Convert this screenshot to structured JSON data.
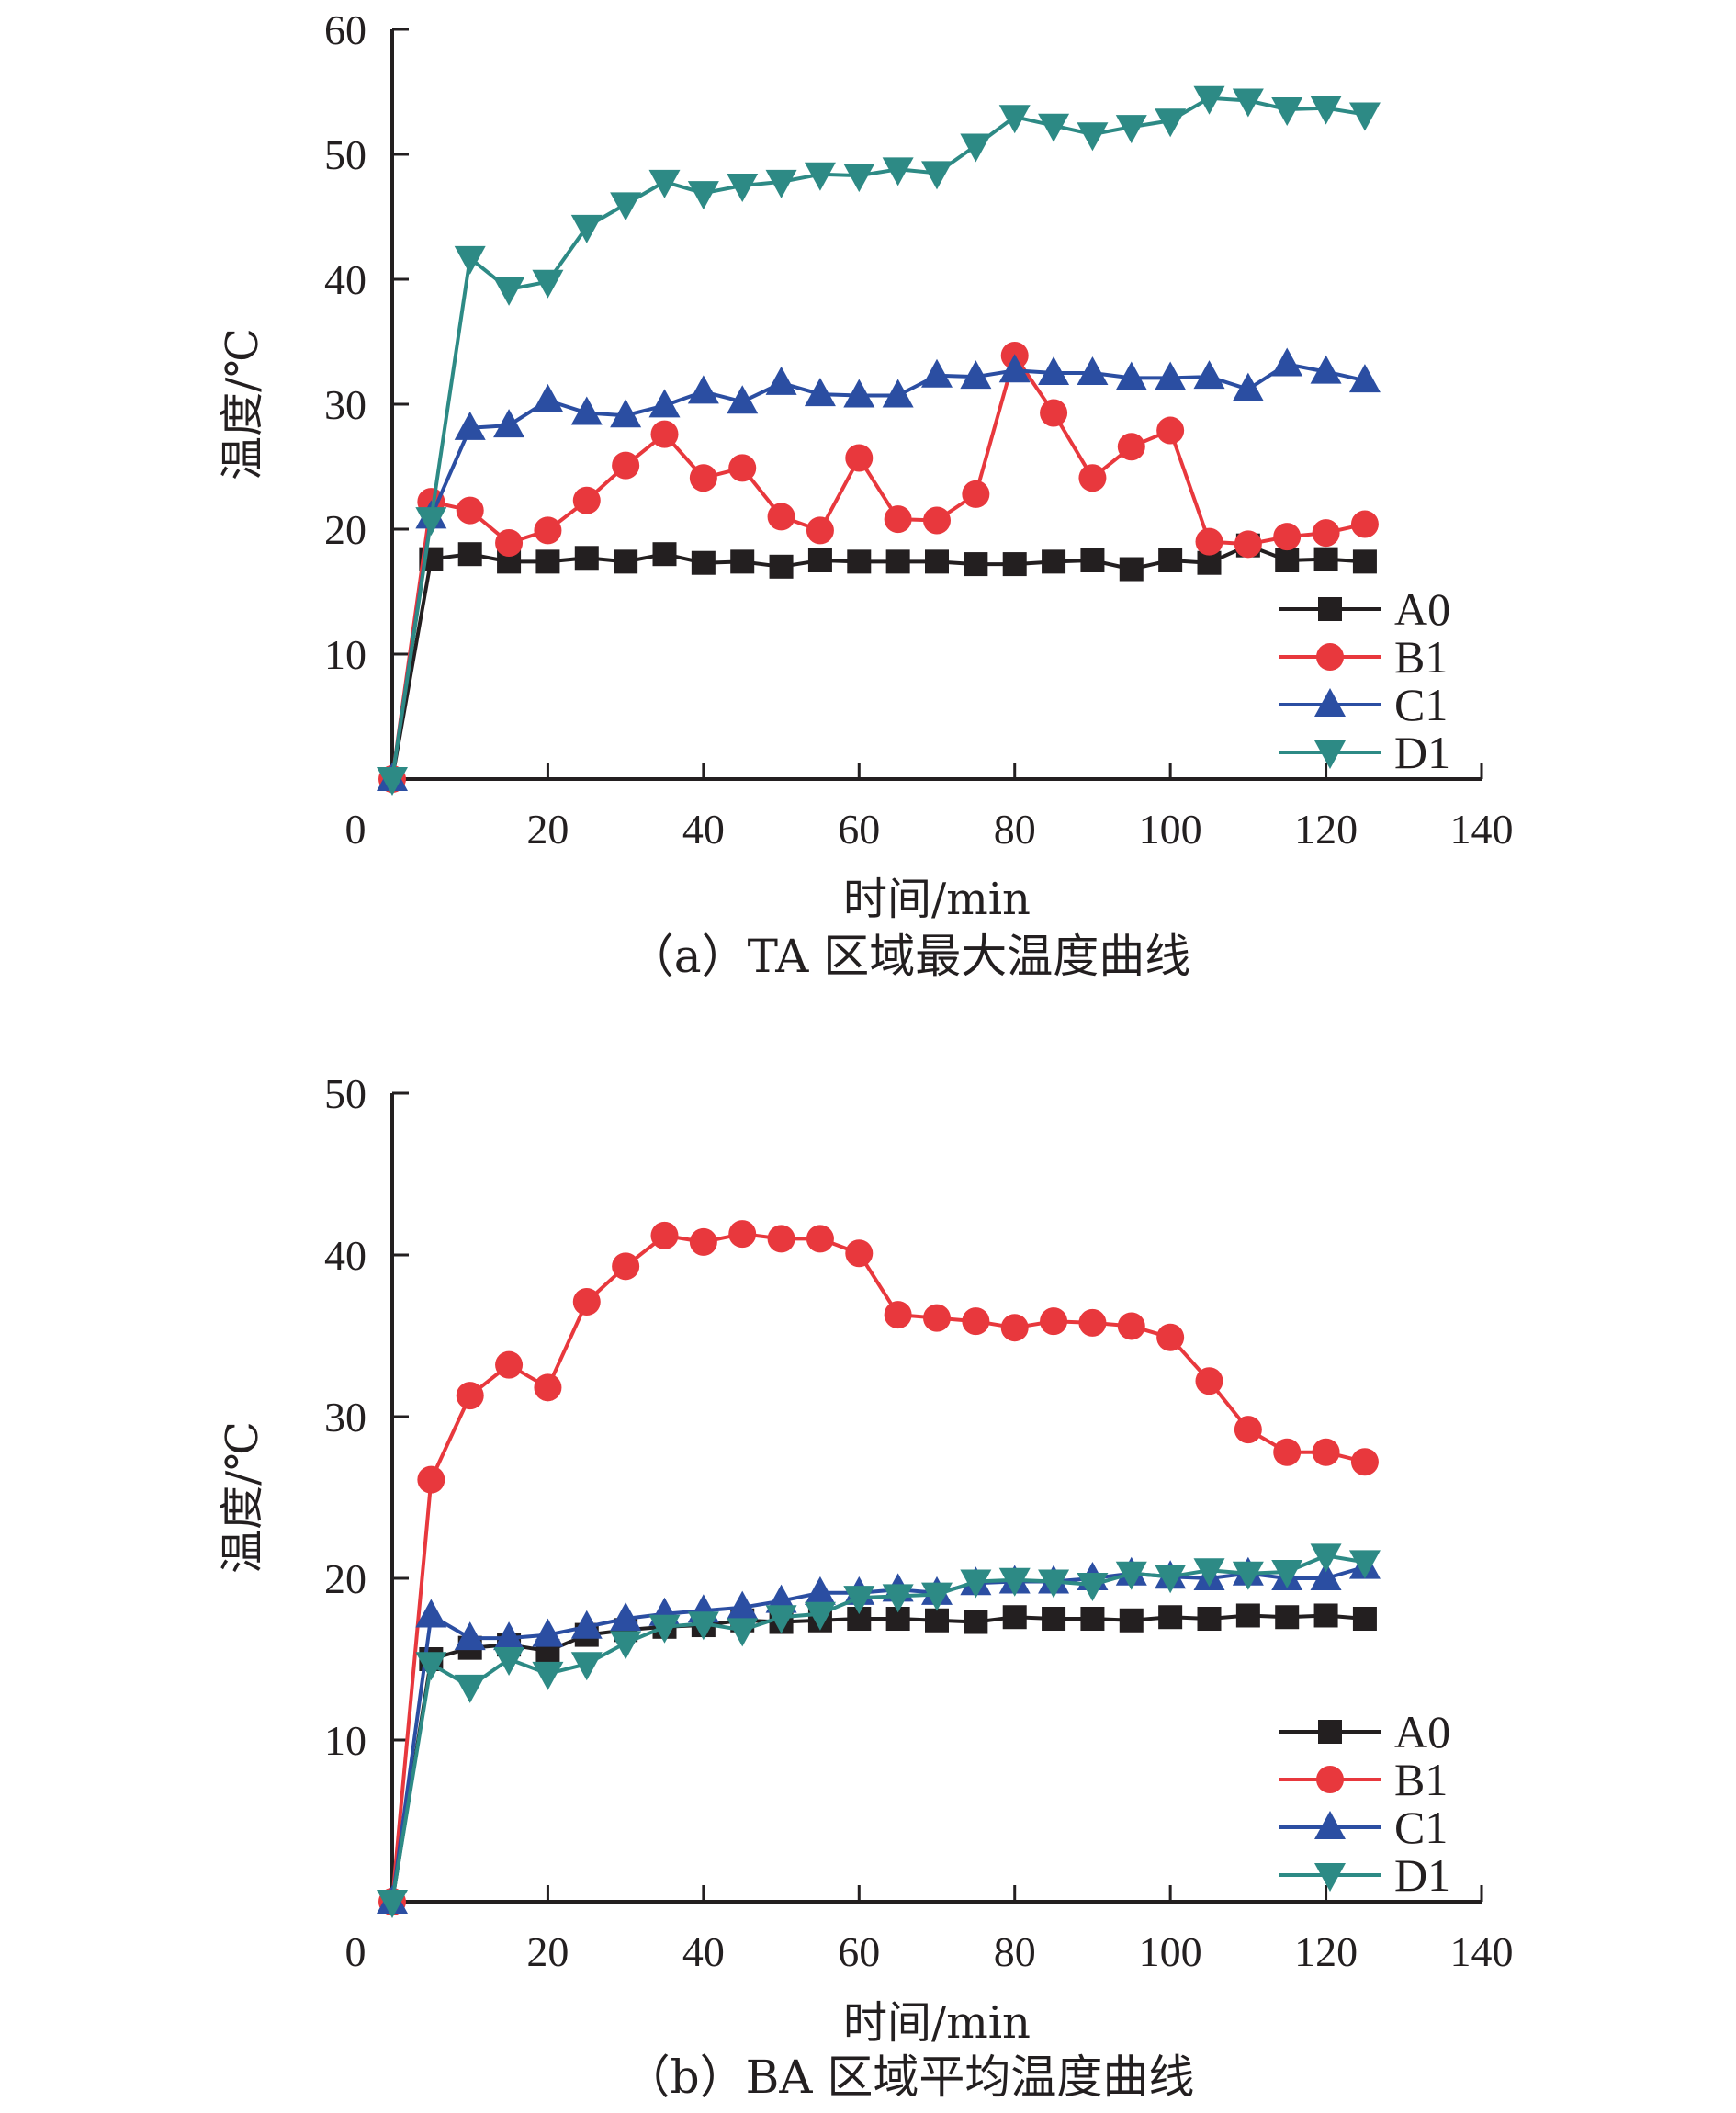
{
  "chart_data": [
    {
      "type": "line",
      "caption": "（a）TA 区域最大温度曲线",
      "xlabel": "时间/min",
      "ylabel": "温度/℃",
      "xlim": [
        0,
        140
      ],
      "ylim": [
        0,
        60
      ],
      "xticks": [
        0,
        20,
        40,
        60,
        80,
        100,
        120,
        140
      ],
      "yticks": [
        10,
        20,
        30,
        40,
        50,
        60
      ],
      "legend_position": "lower-right",
      "x": [
        5,
        10,
        15,
        20,
        25,
        30,
        35,
        40,
        45,
        50,
        55,
        60,
        65,
        70,
        75,
        80,
        85,
        90,
        95,
        100,
        105,
        110,
        115,
        120,
        125
      ],
      "x_start": 0,
      "series": [
        {
          "name": "A0",
          "color": "#231f20",
          "marker": "square",
          "start": 0,
          "values": [
            17.6,
            18.0,
            17.4,
            17.4,
            17.7,
            17.4,
            18.0,
            17.3,
            17.4,
            17.0,
            17.5,
            17.4,
            17.4,
            17.4,
            17.2,
            17.2,
            17.4,
            17.5,
            16.8,
            17.5,
            17.3,
            18.7,
            17.5,
            17.6,
            17.4
          ]
        },
        {
          "name": "B1",
          "color": "#e8383d",
          "marker": "circle",
          "start": 0,
          "values": [
            22.2,
            21.5,
            18.9,
            19.9,
            22.3,
            25.1,
            27.6,
            24.1,
            24.9,
            21.0,
            19.9,
            25.7,
            20.8,
            20.7,
            22.8,
            33.9,
            29.3,
            24.1,
            26.6,
            27.9,
            19.0,
            18.8,
            19.4,
            19.7,
            20.4
          ]
        },
        {
          "name": "C1",
          "color": "#2b4ea2",
          "marker": "triangle-up",
          "start": 0,
          "values": [
            21.0,
            28.1,
            28.3,
            30.3,
            29.3,
            29.1,
            29.9,
            31.0,
            30.2,
            31.7,
            30.8,
            30.7,
            30.7,
            32.3,
            32.2,
            32.7,
            32.5,
            32.5,
            32.1,
            32.1,
            32.2,
            31.2,
            33.2,
            32.6,
            31.9
          ]
        },
        {
          "name": "D1",
          "color": "#2d8a85",
          "marker": "triangle-down",
          "start": 0,
          "values": [
            20.8,
            41.7,
            39.2,
            39.8,
            44.2,
            46.0,
            47.8,
            46.9,
            47.5,
            47.8,
            48.4,
            48.3,
            48.8,
            48.5,
            50.7,
            53.0,
            52.3,
            51.6,
            52.2,
            52.7,
            54.5,
            54.3,
            53.6,
            53.7,
            53.2
          ]
        }
      ]
    },
    {
      "type": "line",
      "caption": "（b）BA 区域平均温度曲线",
      "xlabel": "时间/min",
      "ylabel": "温度/℃",
      "xlim": [
        0,
        140
      ],
      "ylim": [
        0,
        50
      ],
      "xticks": [
        0,
        20,
        40,
        60,
        80,
        100,
        120,
        140
      ],
      "yticks": [
        10,
        20,
        30,
        40,
        50
      ],
      "legend_position": "lower-right",
      "x": [
        5,
        10,
        15,
        20,
        25,
        30,
        35,
        40,
        45,
        50,
        55,
        60,
        65,
        70,
        75,
        80,
        85,
        90,
        95,
        100,
        105,
        110,
        115,
        120,
        125
      ],
      "x_start": 0,
      "series": [
        {
          "name": "A0",
          "color": "#231f20",
          "marker": "square",
          "start": 0,
          "values": [
            15.0,
            15.7,
            15.9,
            15.5,
            16.5,
            16.8,
            17.0,
            17.1,
            17.4,
            17.3,
            17.4,
            17.5,
            17.5,
            17.4,
            17.3,
            17.6,
            17.5,
            17.5,
            17.4,
            17.6,
            17.5,
            17.7,
            17.6,
            17.7,
            17.5
          ]
        },
        {
          "name": "B1",
          "color": "#e8383d",
          "marker": "circle",
          "start": 0,
          "values": [
            26.1,
            31.3,
            33.2,
            31.8,
            37.1,
            39.3,
            41.2,
            40.8,
            41.3,
            41.0,
            41.0,
            40.1,
            36.3,
            36.1,
            35.9,
            35.5,
            35.9,
            35.8,
            35.6,
            34.9,
            32.2,
            29.2,
            27.8,
            27.8,
            27.2
          ]
        },
        {
          "name": "C1",
          "color": "#2b4ea2",
          "marker": "triangle-up",
          "start": 0,
          "values": [
            17.7,
            16.3,
            16.3,
            16.5,
            17.0,
            17.5,
            17.8,
            18.0,
            18.2,
            18.6,
            19.1,
            19.1,
            19.3,
            19.1,
            19.7,
            19.8,
            19.8,
            20.0,
            20.3,
            20.1,
            20.0,
            20.3,
            20.0,
            20.0,
            20.7
          ]
        },
        {
          "name": "D1",
          "color": "#2d8a85",
          "marker": "triangle-down",
          "start": 0,
          "values": [
            14.7,
            13.3,
            15.0,
            14.1,
            14.7,
            16.0,
            17.0,
            17.2,
            16.8,
            17.6,
            17.8,
            18.8,
            18.9,
            19.0,
            19.8,
            19.9,
            19.8,
            19.6,
            20.3,
            20.1,
            20.5,
            20.3,
            20.4,
            21.4,
            21.0
          ]
        }
      ]
    }
  ]
}
